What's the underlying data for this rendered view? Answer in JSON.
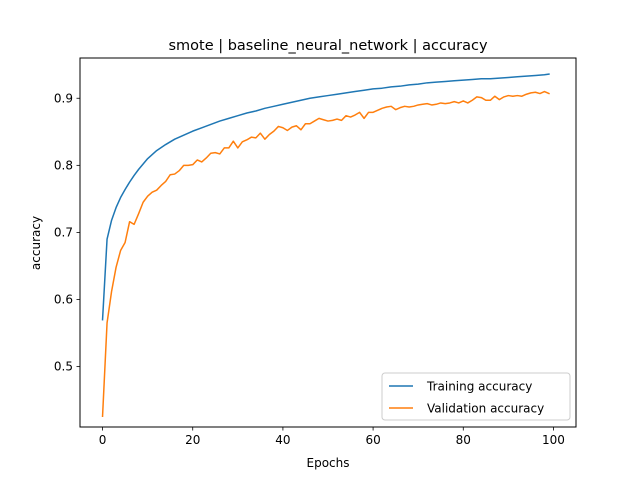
{
  "chart_data": {
    "type": "line",
    "title": "smote | baseline_neural_network | accuracy",
    "xlabel": "Epochs",
    "ylabel": "accuracy",
    "xlim": [
      -5,
      105
    ],
    "ylim": [
      0.41,
      0.96
    ],
    "xticks": [
      0,
      20,
      40,
      60,
      80,
      100
    ],
    "yticks": [
      0.5,
      0.6,
      0.7,
      0.8,
      0.9
    ],
    "legend_position": "lower-right",
    "grid": false,
    "series": [
      {
        "name": "Training accuracy",
        "color": "#1f77b4",
        "x": [
          0,
          1,
          2,
          3,
          4,
          5,
          6,
          7,
          8,
          9,
          10,
          12,
          14,
          16,
          18,
          20,
          22,
          24,
          26,
          28,
          30,
          32,
          34,
          36,
          38,
          40,
          42,
          44,
          46,
          48,
          50,
          52,
          54,
          56,
          58,
          60,
          62,
          64,
          66,
          68,
          70,
          72,
          74,
          76,
          78,
          80,
          82,
          84,
          86,
          88,
          90,
          92,
          94,
          96,
          98,
          99
        ],
        "y": [
          0.57,
          0.69,
          0.718,
          0.737,
          0.752,
          0.764,
          0.775,
          0.785,
          0.794,
          0.802,
          0.81,
          0.822,
          0.831,
          0.839,
          0.845,
          0.851,
          0.856,
          0.861,
          0.866,
          0.87,
          0.874,
          0.878,
          0.881,
          0.885,
          0.888,
          0.891,
          0.894,
          0.897,
          0.9,
          0.902,
          0.904,
          0.906,
          0.908,
          0.91,
          0.912,
          0.914,
          0.915,
          0.917,
          0.918,
          0.92,
          0.921,
          0.923,
          0.924,
          0.925,
          0.926,
          0.927,
          0.928,
          0.929,
          0.929,
          0.93,
          0.931,
          0.932,
          0.933,
          0.934,
          0.935,
          0.936
        ]
      },
      {
        "name": "Validation accuracy",
        "color": "#ff7f0e",
        "x": [
          0,
          1,
          2,
          3,
          4,
          5,
          6,
          7,
          8,
          9,
          10,
          11,
          12,
          13,
          14,
          15,
          16,
          17,
          18,
          19,
          20,
          21,
          22,
          23,
          24,
          25,
          26,
          27,
          28,
          29,
          30,
          31,
          32,
          33,
          34,
          35,
          36,
          37,
          38,
          39,
          40,
          41,
          42,
          43,
          44,
          45,
          46,
          47,
          48,
          49,
          50,
          51,
          52,
          53,
          54,
          55,
          56,
          57,
          58,
          59,
          60,
          61,
          62,
          63,
          64,
          65,
          66,
          67,
          68,
          69,
          70,
          71,
          72,
          73,
          74,
          75,
          76,
          77,
          78,
          79,
          80,
          81,
          82,
          83,
          84,
          85,
          86,
          87,
          88,
          89,
          90,
          91,
          92,
          93,
          94,
          95,
          96,
          97,
          98,
          99
        ],
        "y": [
          0.426,
          0.565,
          0.612,
          0.648,
          0.673,
          0.685,
          0.716,
          0.712,
          0.728,
          0.745,
          0.754,
          0.76,
          0.763,
          0.77,
          0.776,
          0.786,
          0.787,
          0.792,
          0.8,
          0.8,
          0.801,
          0.808,
          0.805,
          0.811,
          0.818,
          0.819,
          0.817,
          0.826,
          0.826,
          0.836,
          0.826,
          0.835,
          0.838,
          0.842,
          0.841,
          0.848,
          0.839,
          0.846,
          0.851,
          0.858,
          0.856,
          0.852,
          0.857,
          0.859,
          0.853,
          0.862,
          0.862,
          0.866,
          0.87,
          0.868,
          0.866,
          0.867,
          0.869,
          0.867,
          0.874,
          0.872,
          0.875,
          0.879,
          0.87,
          0.879,
          0.879,
          0.882,
          0.885,
          0.887,
          0.888,
          0.883,
          0.886,
          0.888,
          0.887,
          0.888,
          0.89,
          0.891,
          0.892,
          0.89,
          0.891,
          0.893,
          0.892,
          0.893,
          0.895,
          0.893,
          0.896,
          0.893,
          0.897,
          0.902,
          0.901,
          0.897,
          0.897,
          0.903,
          0.898,
          0.902,
          0.904,
          0.903,
          0.904,
          0.903,
          0.906,
          0.908,
          0.909,
          0.907,
          0.91,
          0.907
        ]
      }
    ]
  }
}
